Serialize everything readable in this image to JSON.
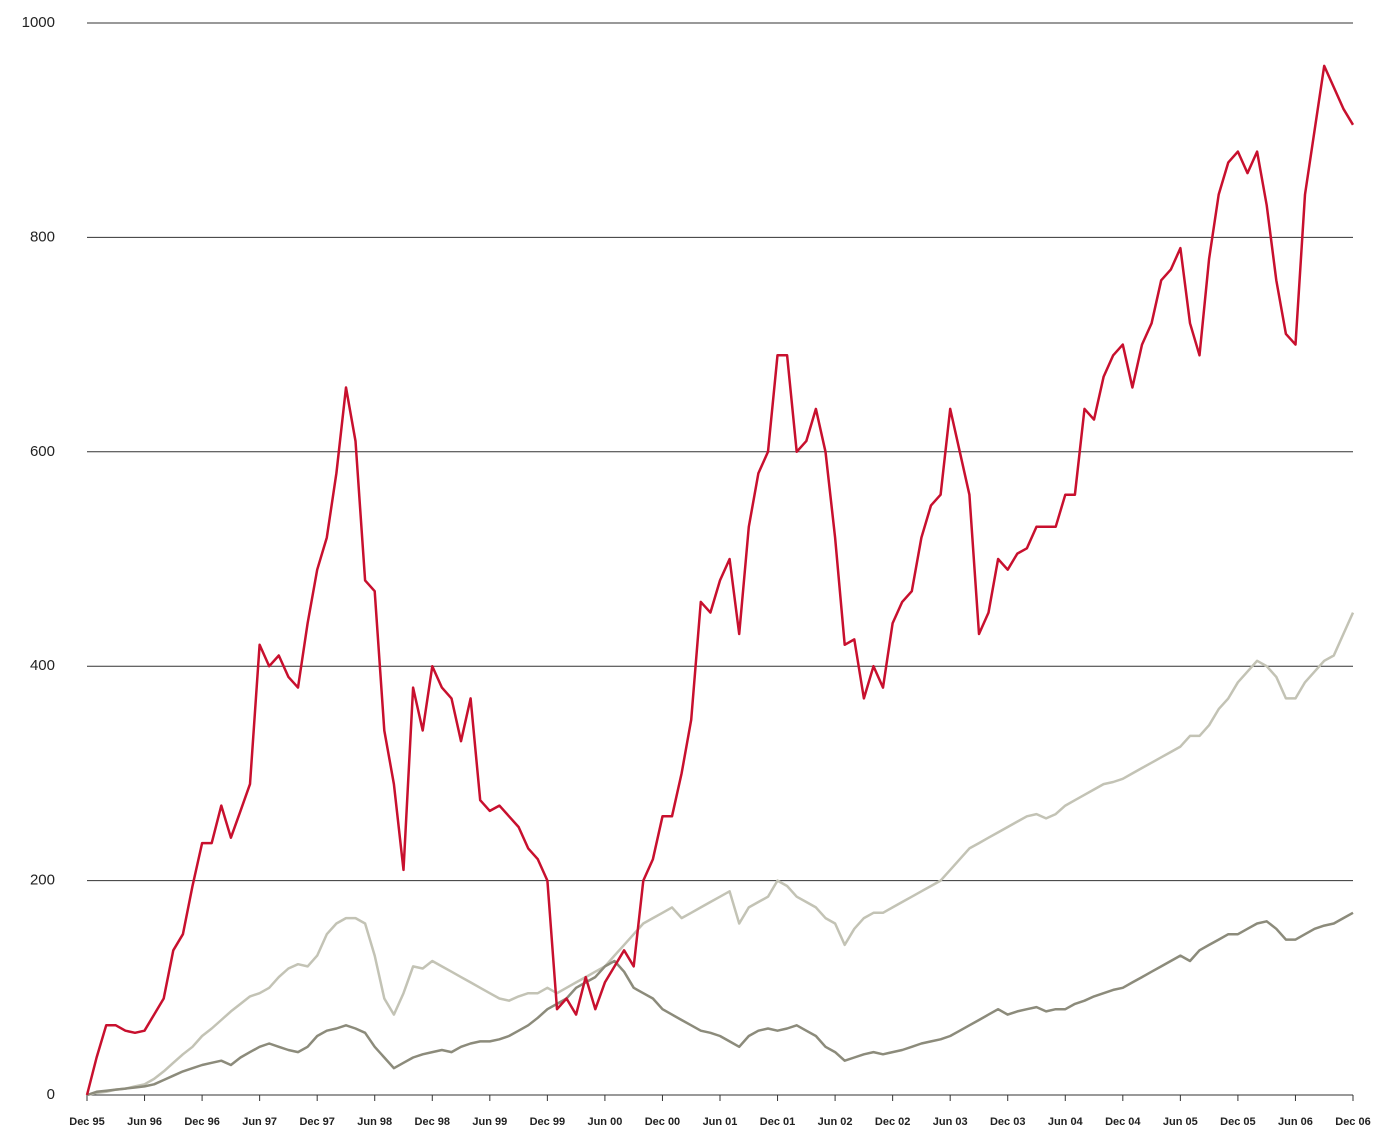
{
  "chart_data": {
    "type": "line",
    "categories": [
      "Dec 95",
      null,
      null,
      null,
      null,
      null,
      "Jun 96",
      null,
      null,
      null,
      null,
      null,
      "Dec 96",
      null,
      null,
      null,
      null,
      null,
      "Jun 97",
      null,
      null,
      null,
      null,
      null,
      "Dec 97",
      null,
      null,
      null,
      null,
      null,
      "Jun 98",
      null,
      null,
      null,
      null,
      null,
      "Dec 98",
      null,
      null,
      null,
      null,
      null,
      "Jun 99",
      null,
      null,
      null,
      null,
      null,
      "Dec 99",
      null,
      null,
      null,
      null,
      null,
      "Jun 00",
      null,
      null,
      null,
      null,
      null,
      "Dec 00",
      null,
      null,
      null,
      null,
      null,
      "Jun 01",
      null,
      null,
      null,
      null,
      null,
      "Dec 01",
      null,
      null,
      null,
      null,
      null,
      "Jun 02",
      null,
      null,
      null,
      null,
      null,
      "Dec 02",
      null,
      null,
      null,
      null,
      null,
      "Jun 03",
      null,
      null,
      null,
      null,
      null,
      "Dec 03",
      null,
      null,
      null,
      null,
      null,
      "Jun 04",
      null,
      null,
      null,
      null,
      null,
      "Dec 04",
      null,
      null,
      null,
      null,
      null,
      "Jun 05",
      null,
      null,
      null,
      null,
      null,
      "Dec 05",
      null,
      null,
      null,
      null,
      null,
      "Jun 06",
      null,
      null,
      null,
      null,
      null,
      "Dec 06"
    ],
    "series": [
      {
        "color": "#c3c3b5",
        "values": [
          0,
          2,
          3,
          5,
          6,
          8,
          10,
          15,
          22,
          30,
          38,
          45,
          55,
          62,
          70,
          78,
          85,
          92,
          95,
          100,
          110,
          118,
          122,
          120,
          130,
          150,
          160,
          165,
          165,
          160,
          130,
          90,
          75,
          95,
          120,
          118,
          125,
          120,
          115,
          110,
          105,
          100,
          95,
          90,
          88,
          92,
          95,
          95,
          100,
          95,
          100,
          105,
          110,
          115,
          120,
          130,
          140,
          150,
          160,
          165,
          170,
          175,
          165,
          170,
          175,
          180,
          185,
          190,
          160,
          175,
          180,
          185,
          200,
          195,
          185,
          180,
          175,
          165,
          160,
          140,
          155,
          165,
          170,
          170,
          175,
          180,
          185,
          190,
          195,
          200,
          210,
          220,
          230,
          235,
          240,
          245,
          250,
          255,
          260,
          262,
          258,
          262,
          270,
          275,
          280,
          285,
          290,
          292,
          295,
          300,
          305,
          310,
          315,
          320,
          325,
          335,
          335,
          345,
          360,
          370,
          385,
          395,
          405,
          400,
          390,
          370,
          370,
          385,
          395,
          405,
          410,
          430,
          450
        ]
      },
      {
        "color": "#8c8b7b",
        "values": [
          0,
          3,
          4,
          5,
          6,
          7,
          8,
          10,
          14,
          18,
          22,
          25,
          28,
          30,
          32,
          28,
          35,
          40,
          45,
          48,
          45,
          42,
          40,
          45,
          55,
          60,
          62,
          65,
          62,
          58,
          45,
          35,
          25,
          30,
          35,
          38,
          40,
          42,
          40,
          45,
          48,
          50,
          50,
          52,
          55,
          60,
          65,
          72,
          80,
          85,
          90,
          100,
          105,
          110,
          120,
          125,
          115,
          100,
          95,
          90,
          80,
          75,
          70,
          65,
          60,
          58,
          55,
          50,
          45,
          55,
          60,
          62,
          60,
          62,
          65,
          60,
          55,
          45,
          40,
          32,
          35,
          38,
          40,
          38,
          40,
          42,
          45,
          48,
          50,
          52,
          55,
          60,
          65,
          70,
          75,
          80,
          75,
          78,
          80,
          82,
          78,
          80,
          80,
          85,
          88,
          92,
          95,
          98,
          100,
          105,
          110,
          115,
          120,
          125,
          130,
          125,
          135,
          140,
          145,
          150,
          150,
          155,
          160,
          162,
          155,
          145,
          145,
          150,
          155,
          158,
          160,
          165,
          170
        ]
      },
      {
        "color": "#c8102e",
        "values": [
          0,
          35,
          65,
          65,
          60,
          58,
          60,
          75,
          90,
          135,
          150,
          195,
          235,
          235,
          270,
          240,
          265,
          290,
          420,
          400,
          410,
          390,
          380,
          440,
          490,
          520,
          580,
          660,
          610,
          480,
          470,
          340,
          290,
          210,
          380,
          340,
          400,
          380,
          370,
          330,
          370,
          275,
          265,
          270,
          260,
          250,
          230,
          220,
          200,
          80,
          90,
          75,
          110,
          80,
          105,
          120,
          135,
          120,
          200,
          220,
          260,
          260,
          300,
          350,
          460,
          450,
          480,
          500,
          430,
          530,
          580,
          600,
          690,
          690,
          600,
          610,
          640,
          600,
          520,
          420,
          425,
          370,
          400,
          380,
          440,
          460,
          470,
          520,
          550,
          560,
          640,
          600,
          560,
          430,
          450,
          500,
          490,
          505,
          510,
          530,
          530,
          530,
          560,
          560,
          640,
          630,
          670,
          690,
          700,
          660,
          700,
          720,
          760,
          770,
          790,
          720,
          690,
          780,
          840,
          870,
          880,
          860,
          880,
          830,
          760,
          710,
          700,
          840,
          900,
          960,
          940,
          920,
          905
        ]
      }
    ],
    "ylim": [
      0,
      1000
    ],
    "yticks": [
      0,
      200,
      400,
      600,
      800,
      1000
    ],
    "grid": true
  }
}
